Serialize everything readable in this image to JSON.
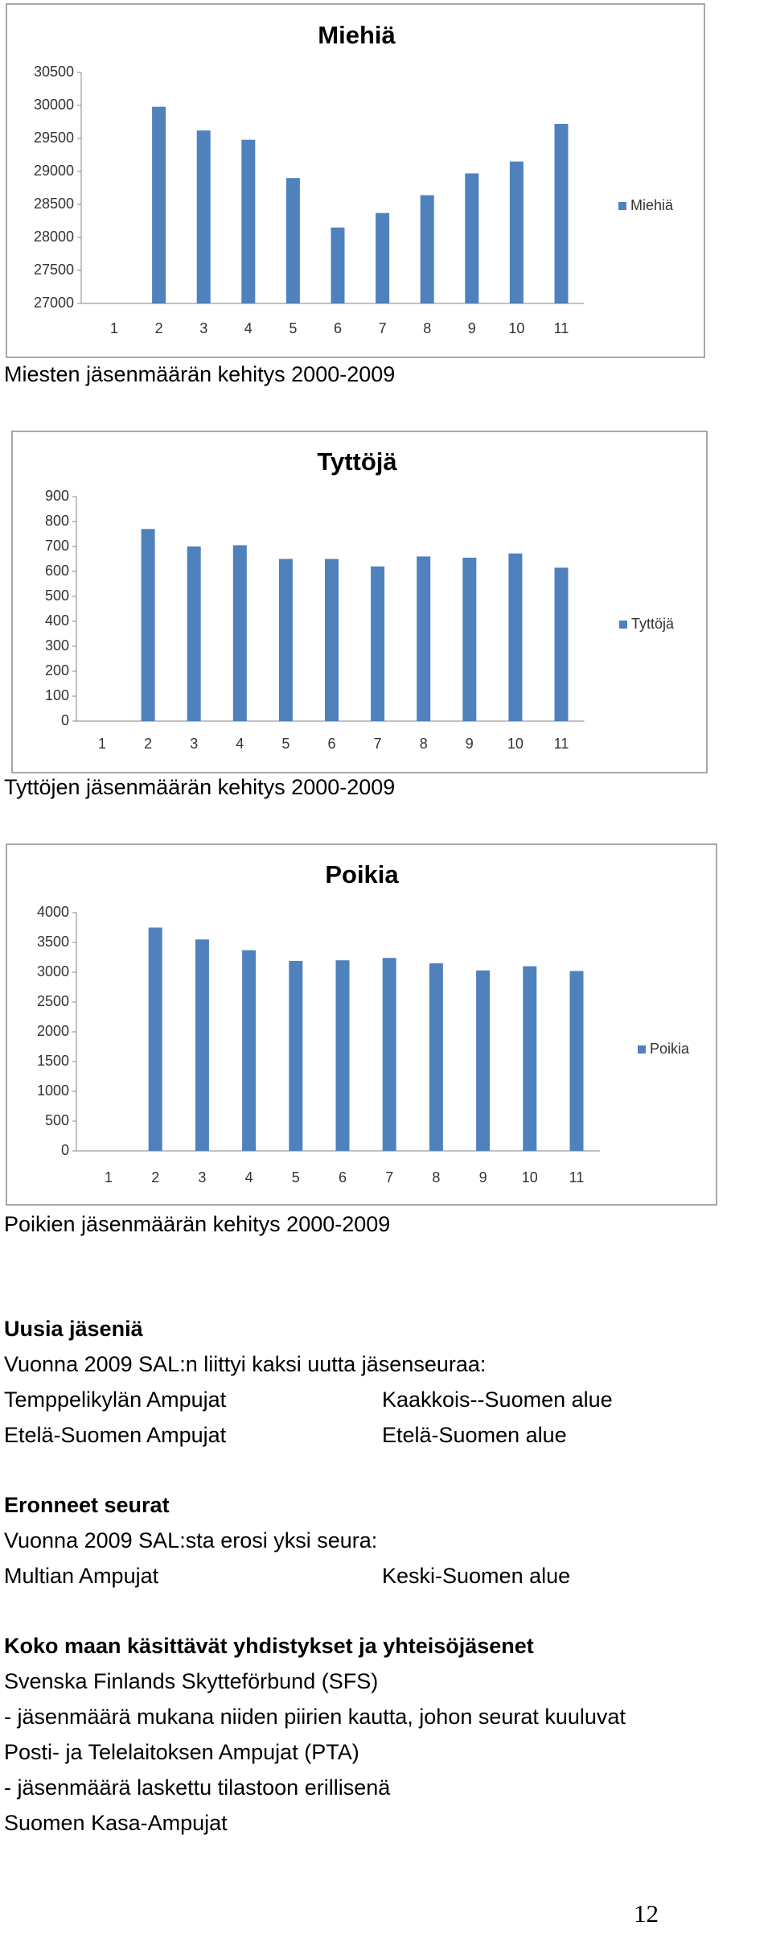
{
  "chart_data": [
    {
      "type": "bar",
      "title": "Miehiä",
      "categories": [
        1,
        2,
        3,
        4,
        5,
        6,
        7,
        8,
        9,
        10,
        11
      ],
      "series": [
        {
          "name": "Miehiä",
          "color": "#4f81bd",
          "values": [
            null,
            29980,
            29620,
            29480,
            28900,
            28150,
            28370,
            28640,
            28970,
            29150,
            29720
          ]
        }
      ],
      "ylim": [
        27000,
        30500
      ],
      "yticks": [
        27000,
        27500,
        28000,
        28500,
        29000,
        29500,
        30000,
        30500
      ],
      "grid": false,
      "legend": "right"
    },
    {
      "type": "bar",
      "title": "Tyttöjä",
      "categories": [
        1,
        2,
        3,
        4,
        5,
        6,
        7,
        8,
        9,
        10,
        11
      ],
      "series": [
        {
          "name": "Tyttöjä",
          "color": "#4f81bd",
          "values": [
            null,
            770,
            700,
            705,
            650,
            650,
            620,
            660,
            655,
            672,
            615
          ]
        }
      ],
      "ylim": [
        0,
        900
      ],
      "yticks": [
        0,
        100,
        200,
        300,
        400,
        500,
        600,
        700,
        800,
        900
      ],
      "grid": false,
      "legend": "right"
    },
    {
      "type": "bar",
      "title": "Poikia",
      "categories": [
        1,
        2,
        3,
        4,
        5,
        6,
        7,
        8,
        9,
        10,
        11
      ],
      "series": [
        {
          "name": "Poikia",
          "color": "#4f81bd",
          "values": [
            null,
            3750,
            3550,
            3370,
            3190,
            3200,
            3240,
            3150,
            3030,
            3100,
            3020
          ]
        }
      ],
      "ylim": [
        0,
        4000
      ],
      "yticks": [
        0,
        500,
        1000,
        1500,
        2000,
        2500,
        3000,
        3500,
        4000
      ],
      "grid": false,
      "legend": "right"
    }
  ],
  "captions": [
    "Miesten jäsenmäärän kehitys 2000-2009",
    "Tyttöjen jäsenmäärän kehitys 2000-2009",
    "Poikien jäsenmäärän kehitys 2000-2009"
  ],
  "sections": [
    {
      "heading": "Uusia jäseniä",
      "lines": [
        [
          "Vuonna 2009 SAL:n liittyi kaksi uutta jäsenseuraa:"
        ],
        [
          "Temppelikylän Ampujat",
          "Kaakkois--Suomen alue"
        ],
        [
          "Etelä-Suomen Ampujat",
          "Etelä-Suomen alue"
        ]
      ]
    },
    {
      "heading": "Eronneet seurat",
      "lines": [
        [
          "Vuonna 2009 SAL:sta erosi yksi seura:"
        ],
        [
          "Multian Ampujat",
          "Keski-Suomen alue"
        ]
      ]
    },
    {
      "heading": "Koko maan käsittävät yhdistykset ja yhteisöjäsenet",
      "lines": [
        [
          "Svenska Finlands Skytteförbund (SFS)"
        ],
        [
          "- jäsenmäärä mukana niiden piirien kautta, johon seurat kuuluvat"
        ],
        [
          "Posti- ja Telelaitoksen Ampujat (PTA)"
        ],
        [
          "- jäsenmäärä laskettu tilastoon erillisenä"
        ],
        [
          "Suomen Kasa-Ampujat"
        ]
      ]
    }
  ],
  "page_number": 12
}
